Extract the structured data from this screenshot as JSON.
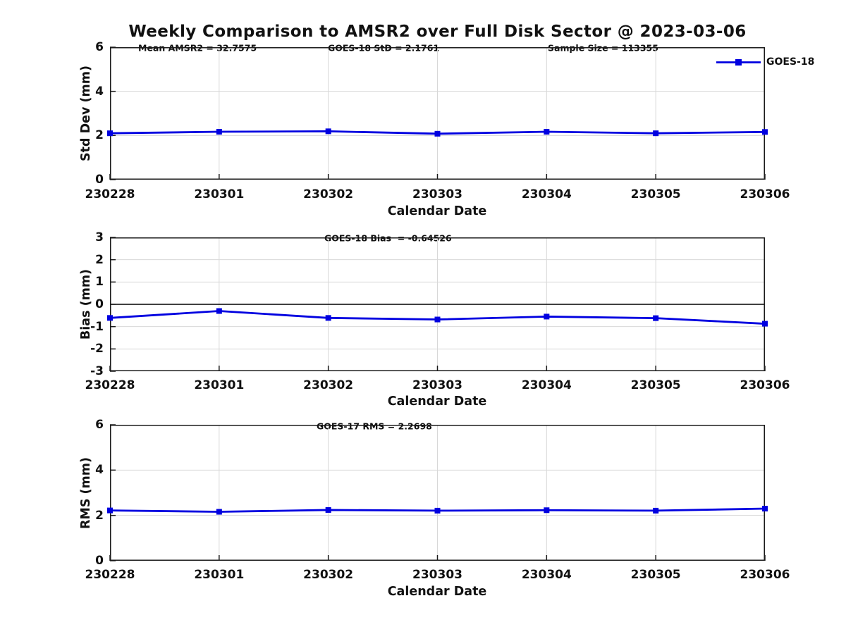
{
  "title": "Weekly Comparison to AMSR2 over Full Disk Sector @ 2023-03-06",
  "legend": {
    "label": "GOES-18"
  },
  "colors": {
    "line": "#0000e0",
    "grid": "#d8d8d8",
    "axis": "#1a1a1a",
    "zero_line": "#000000",
    "text": "#111111",
    "background": "#ffffff"
  },
  "chart_data": [
    {
      "type": "line",
      "name": "std-dev",
      "annotations": [
        "Mean AMSR2 = 32.7575",
        "GOES-18 StD = 2.1761",
        "Sample Size = 113355"
      ],
      "xlabel": "Calendar Date",
      "ylabel": "Std Dev (mm)",
      "categories": [
        "230228",
        "230301",
        "230302",
        "230303",
        "230304",
        "230305",
        "230306"
      ],
      "series": [
        {
          "name": "GOES-18",
          "values": [
            2.1,
            2.17,
            2.19,
            2.08,
            2.17,
            2.1,
            2.16
          ]
        }
      ],
      "ylim": [
        0,
        6
      ],
      "yticks": [
        0,
        2,
        4,
        6
      ],
      "grid": true,
      "zero_line": false,
      "legend_position": "top-right"
    },
    {
      "type": "line",
      "name": "bias",
      "annotations": [
        "GOES-18 Bias  = -0.64526"
      ],
      "xlabel": "Calendar Date",
      "ylabel": "Bias (mm)",
      "categories": [
        "230228",
        "230301",
        "230302",
        "230303",
        "230304",
        "230305",
        "230306"
      ],
      "series": [
        {
          "name": "GOES-18",
          "values": [
            -0.61,
            -0.3,
            -0.61,
            -0.68,
            -0.55,
            -0.62,
            -0.87
          ]
        }
      ],
      "ylim": [
        -3,
        3
      ],
      "yticks": [
        -3,
        -2,
        -1,
        0,
        1,
        2,
        3
      ],
      "grid": true,
      "zero_line": true,
      "legend_position": "none"
    },
    {
      "type": "line",
      "name": "rms",
      "annotations": [
        "GOES-17 RMS = 2.2698"
      ],
      "xlabel": "Calendar Date",
      "ylabel": "RMS (mm)",
      "categories": [
        "230228",
        "230301",
        "230302",
        "230303",
        "230304",
        "230305",
        "230306"
      ],
      "series": [
        {
          "name": "GOES-18",
          "values": [
            2.22,
            2.16,
            2.24,
            2.21,
            2.23,
            2.21,
            2.3
          ]
        }
      ],
      "ylim": [
        0,
        6
      ],
      "yticks": [
        0,
        2,
        4,
        6
      ],
      "grid": true,
      "zero_line": false,
      "legend_position": "none"
    }
  ]
}
